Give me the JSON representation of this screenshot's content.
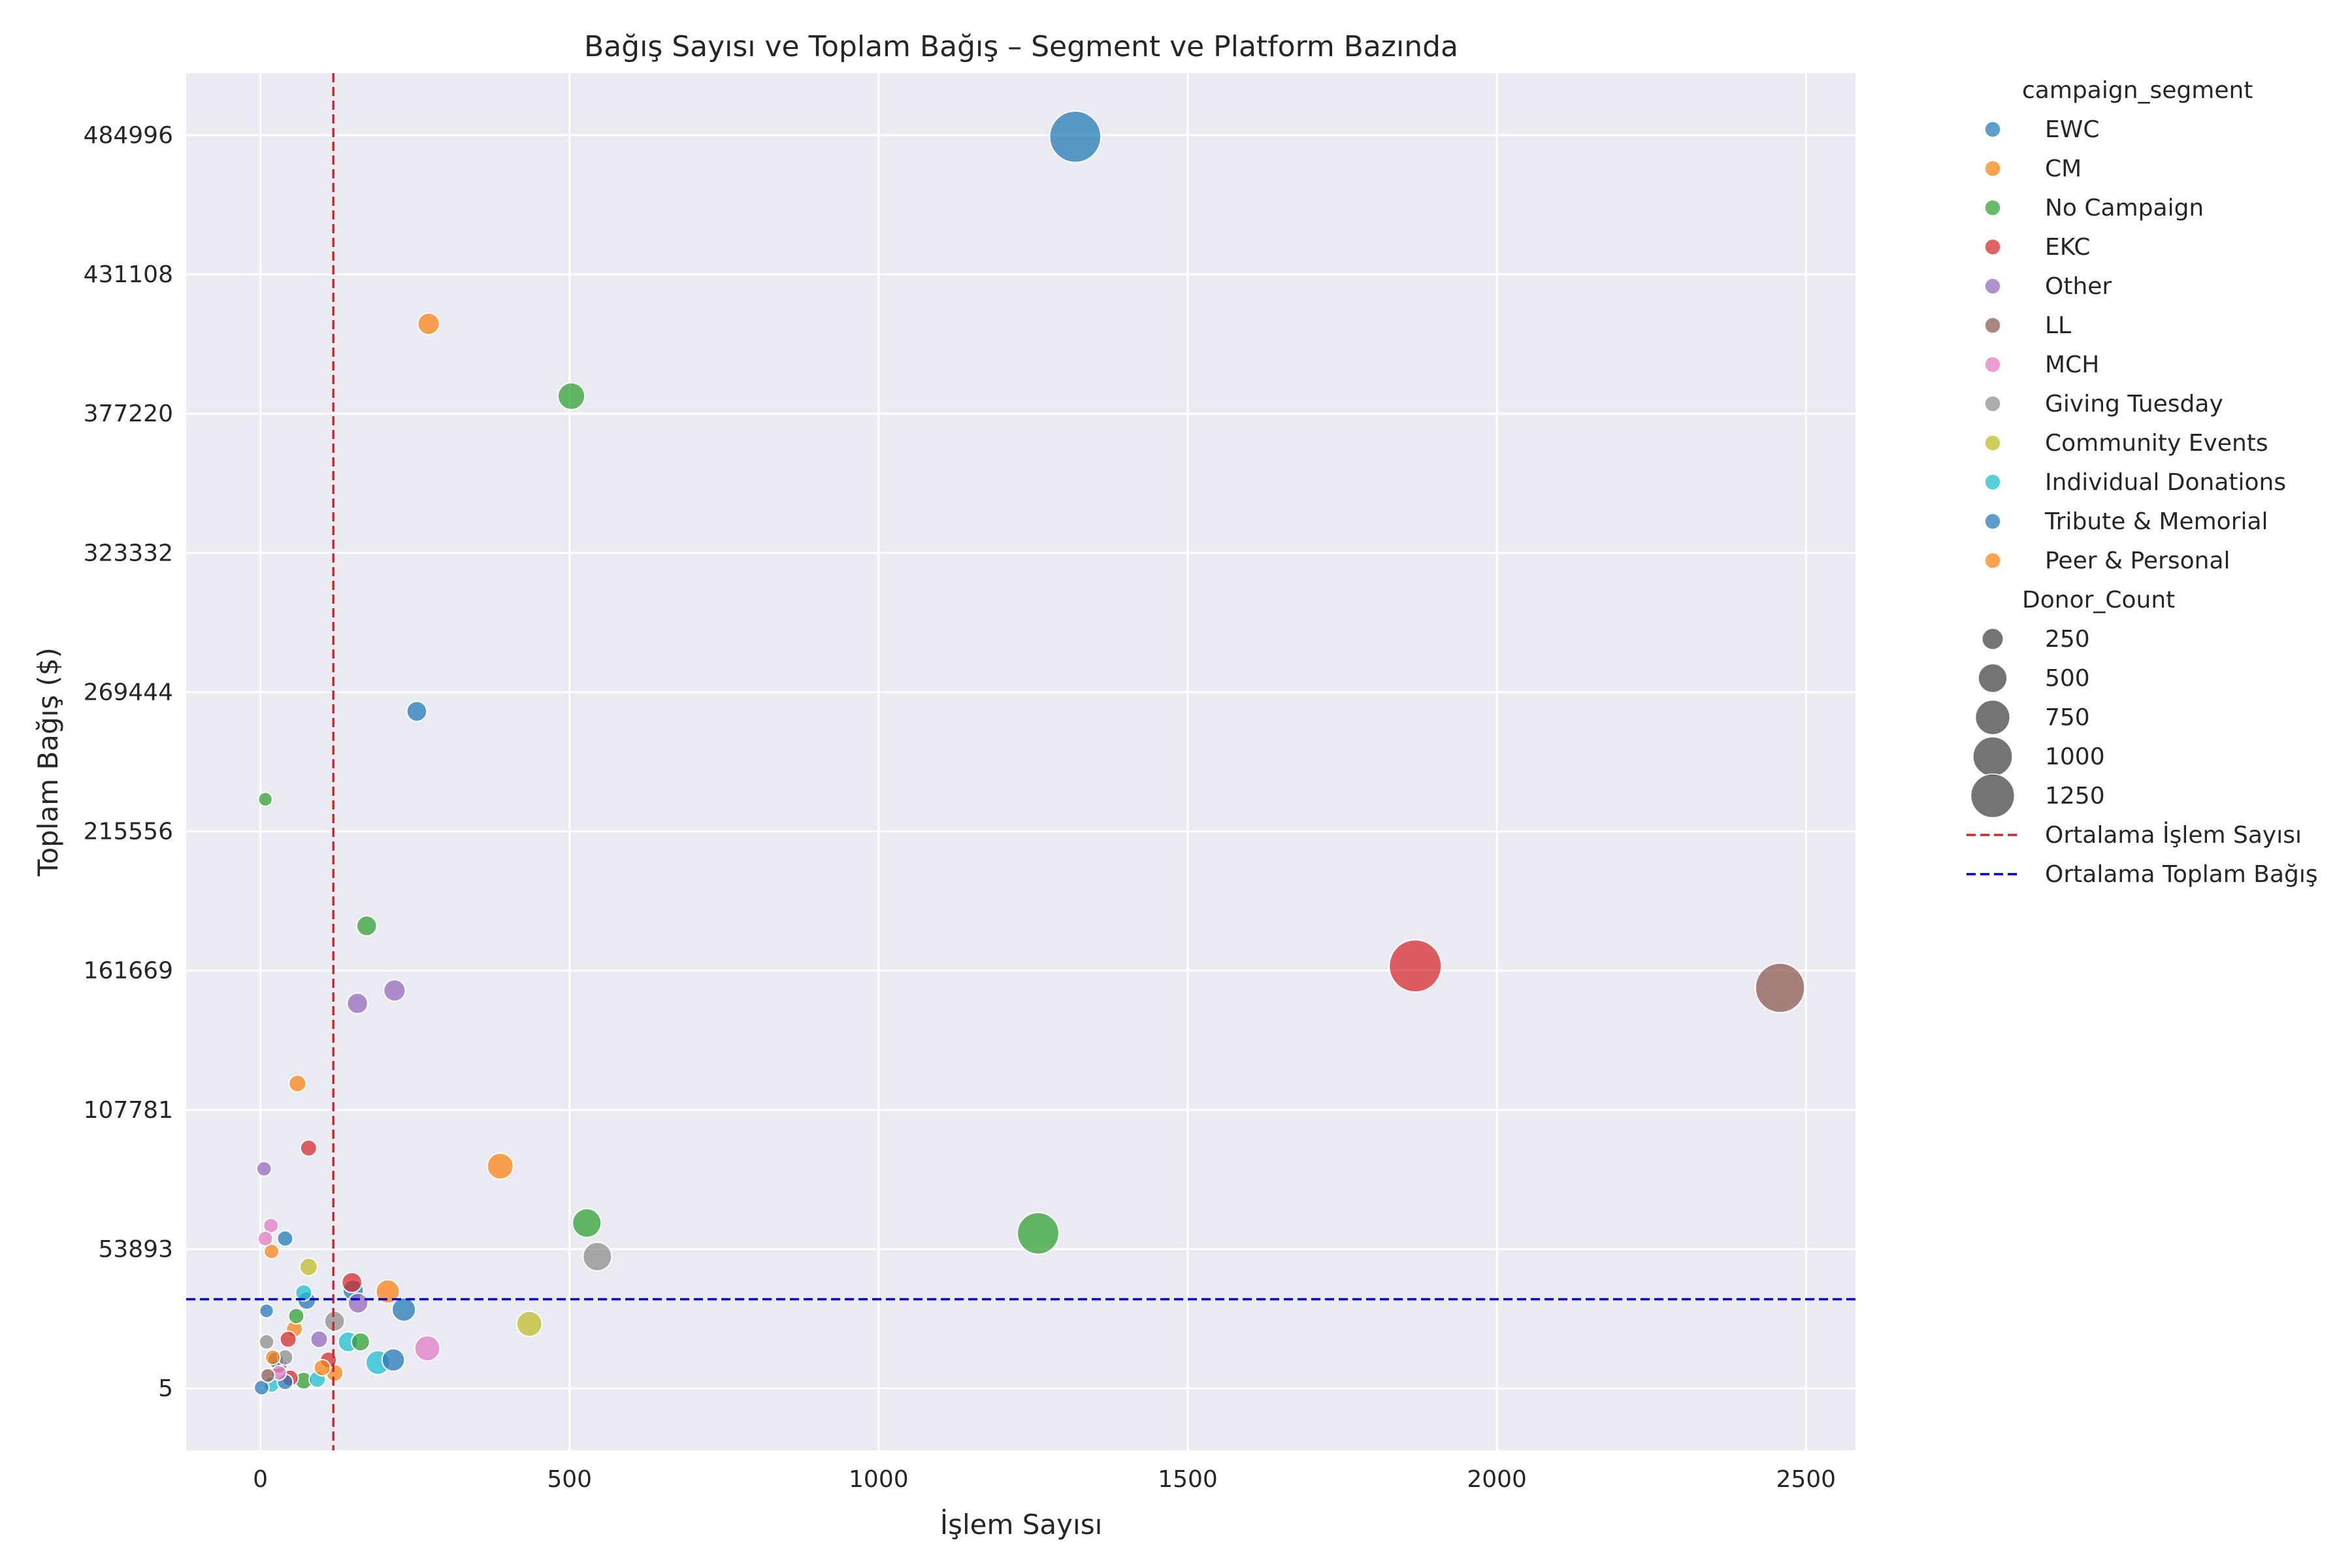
{
  "chart_data": {
    "type": "scatter",
    "title": "Bağış Sayısı ve Toplam Bağış – Segment ve Platform Bazında",
    "xlabel": "İşlem Sayısı",
    "ylabel": "Toplam Bağış ($)",
    "xlim": [
      -120,
      2580
    ],
    "ylim": [
      -24000,
      509000
    ],
    "xticks": [
      0,
      500,
      1000,
      1500,
      2000,
      2500
    ],
    "yticks": [
      5,
      53893,
      107781,
      161669,
      215556,
      269444,
      323332,
      377220,
      431108,
      484996
    ],
    "grid": true,
    "legend_placement": "outside-right",
    "hue_title": "campaign_segment",
    "size_title": "Donor_Count",
    "size_legend": [
      250,
      500,
      750,
      1000,
      1250
    ],
    "mean_lines": {
      "x": {
        "value": 118,
        "label": "Ortalama İşlem Sayısı",
        "color": "#d62728"
      },
      "y": {
        "value": 34500,
        "label": "Ortalama Toplam Bağış",
        "color": "#0000cc"
      }
    },
    "series": [
      {
        "name": "EWC",
        "color": "#1f77b4",
        "points": [
          {
            "x": 1318,
            "y": 484400,
            "size": 1250
          },
          {
            "x": 253,
            "y": 262000,
            "size": 150
          },
          {
            "x": 40,
            "y": 58000,
            "size": 80
          },
          {
            "x": 10,
            "y": 30000,
            "size": 60
          },
          {
            "x": 232,
            "y": 30500,
            "size": 220
          },
          {
            "x": 215,
            "y": 11000,
            "size": 200
          }
        ]
      },
      {
        "name": "CM",
        "color": "#ff7f0e",
        "points": [
          {
            "x": 272,
            "y": 412000,
            "size": 180
          },
          {
            "x": 388,
            "y": 86000,
            "size": 280
          },
          {
            "x": 60,
            "y": 118000,
            "size": 100
          },
          {
            "x": 18,
            "y": 53000,
            "size": 70
          },
          {
            "x": 206,
            "y": 37500,
            "size": 220
          },
          {
            "x": 55,
            "y": 23000,
            "size": 90
          },
          {
            "x": 120,
            "y": 6000,
            "size": 100
          }
        ]
      },
      {
        "name": "No Campaign",
        "color": "#2ca02c",
        "points": [
          {
            "x": 503,
            "y": 384000,
            "size": 300
          },
          {
            "x": 8,
            "y": 228000,
            "size": 60
          },
          {
            "x": 172,
            "y": 179000,
            "size": 150
          },
          {
            "x": 528,
            "y": 64000,
            "size": 350
          },
          {
            "x": 1258,
            "y": 60000,
            "size": 800
          },
          {
            "x": 162,
            "y": 18000,
            "size": 120
          },
          {
            "x": 58,
            "y": 28000,
            "size": 80
          },
          {
            "x": 70,
            "y": 3000,
            "size": 100
          }
        ]
      },
      {
        "name": "EKC",
        "color": "#d62728",
        "points": [
          {
            "x": 1868,
            "y": 163500,
            "size": 1300
          },
          {
            "x": 78,
            "y": 93000,
            "size": 90
          },
          {
            "x": 148,
            "y": 41000,
            "size": 150
          },
          {
            "x": 45,
            "y": 19000,
            "size": 90
          },
          {
            "x": 110,
            "y": 11000,
            "size": 90
          },
          {
            "x": 48,
            "y": 4000,
            "size": 90
          }
        ]
      },
      {
        "name": "Other",
        "color": "#9467bd",
        "points": [
          {
            "x": 217,
            "y": 154000,
            "size": 180
          },
          {
            "x": 157,
            "y": 149000,
            "size": 160
          },
          {
            "x": 6,
            "y": 85000,
            "size": 70
          },
          {
            "x": 158,
            "y": 33000,
            "size": 150
          },
          {
            "x": 95,
            "y": 19000,
            "size": 100
          }
        ]
      },
      {
        "name": "LL",
        "color": "#8c564b",
        "points": [
          {
            "x": 2458,
            "y": 155000,
            "size": 1150
          },
          {
            "x": 30,
            "y": 9000,
            "size": 90
          },
          {
            "x": 12,
            "y": 5000,
            "size": 60
          }
        ]
      },
      {
        "name": "MCH",
        "color": "#e377c2",
        "points": [
          {
            "x": 17,
            "y": 63000,
            "size": 70
          },
          {
            "x": 8,
            "y": 58000,
            "size": 70
          },
          {
            "x": 270,
            "y": 15500,
            "size": 260
          },
          {
            "x": 30,
            "y": 6000,
            "size": 70
          }
        ]
      },
      {
        "name": "Giving Tuesday",
        "color": "#8c8c8c",
        "points": [
          {
            "x": 545,
            "y": 51000,
            "size": 350
          },
          {
            "x": 120,
            "y": 26000,
            "size": 150
          },
          {
            "x": 10,
            "y": 18000,
            "size": 70
          },
          {
            "x": 40,
            "y": 12000,
            "size": 80
          }
        ]
      },
      {
        "name": "Community Events",
        "color": "#bcbd22",
        "points": [
          {
            "x": 78,
            "y": 47000,
            "size": 110
          },
          {
            "x": 435,
            "y": 25000,
            "size": 260
          }
        ]
      },
      {
        "name": "Individual Donations",
        "color": "#17becf",
        "points": [
          {
            "x": 190,
            "y": 10000,
            "size": 230
          },
          {
            "x": 70,
            "y": 37000,
            "size": 90
          },
          {
            "x": 142,
            "y": 18000,
            "size": 150
          },
          {
            "x": 92,
            "y": 3500,
            "size": 90
          },
          {
            "x": 18,
            "y": 1500,
            "size": 80
          }
        ]
      },
      {
        "name": "Tribute & Memorial",
        "color": "#1f77b4",
        "points": [
          {
            "x": 150,
            "y": 38000,
            "size": 160
          },
          {
            "x": 75,
            "y": 34000,
            "size": 110
          },
          {
            "x": 25,
            "y": 11000,
            "size": 90
          },
          {
            "x": 40,
            "y": 2500,
            "size": 80
          },
          {
            "x": 2,
            "y": 300,
            "size": 70
          }
        ]
      },
      {
        "name": "Peer & Personal",
        "color": "#ff7f0e",
        "points": [
          {
            "x": 100,
            "y": 8000,
            "size": 90
          },
          {
            "x": 20,
            "y": 12000,
            "size": 70
          }
        ]
      }
    ]
  }
}
